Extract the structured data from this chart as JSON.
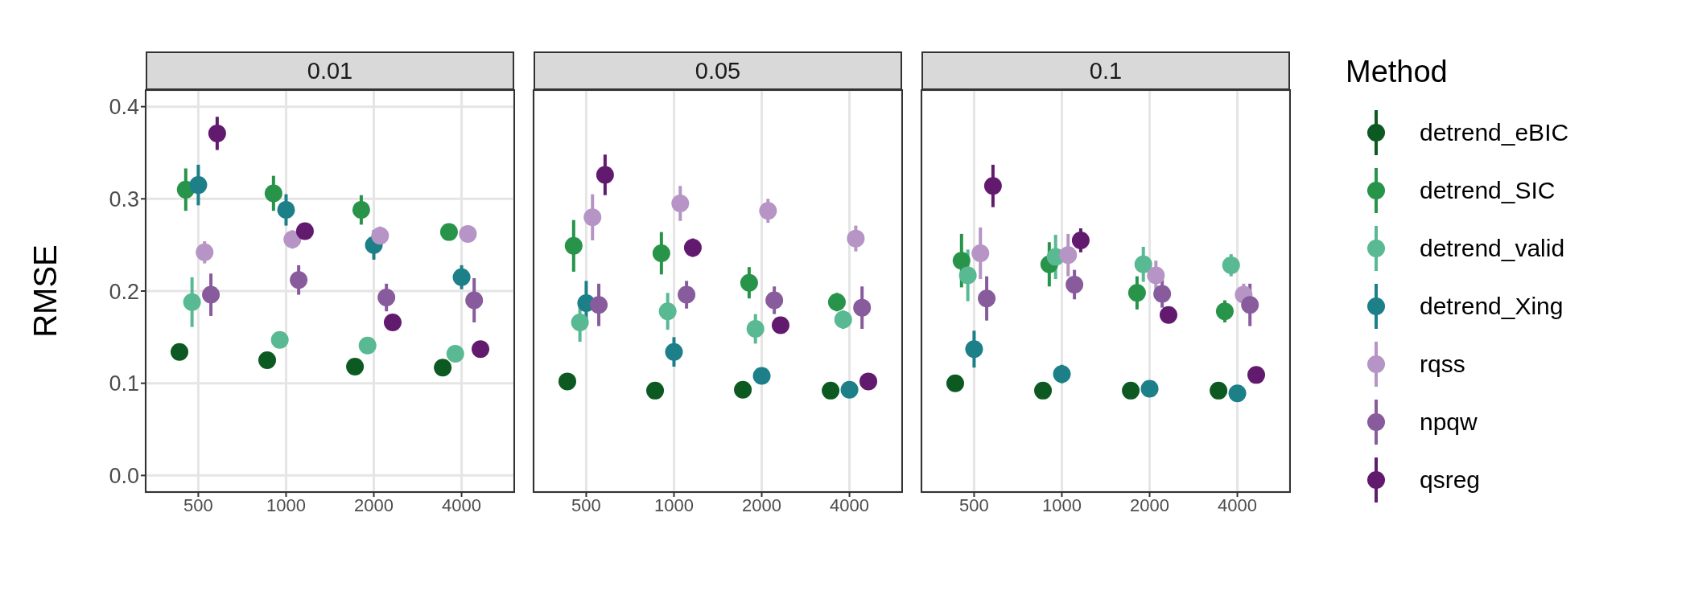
{
  "chart_data": [
    {
      "type": "scatter",
      "title": "0.01",
      "ylabel": "RMSE",
      "categories": [
        "500",
        "1000",
        "2000",
        "4000"
      ],
      "ylim": [
        -0.018,
        0.418
      ],
      "yticks": [
        {
          "value": 0,
          "label": "0.0"
        },
        0.1,
        0.2,
        0.3,
        0.4
      ],
      "grid": true,
      "marker": "circle",
      "series": [
        {
          "color": "#0c5a22",
          "values": [
            0.134,
            0.125,
            0.118,
            0.117
          ]
        },
        {
          "color": "#27944a",
          "values": [
            0.31,
            0.306,
            0.288,
            0.264
          ],
          "errors": [
            0.023,
            0.019,
            0.016,
            null
          ]
        },
        {
          "color": "#58b993",
          "values": [
            0.188,
            0.147,
            0.141,
            0.132
          ],
          "errors": [
            0.027,
            0.006,
            null,
            null
          ]
        },
        {
          "color": "#1d7f88",
          "values": [
            0.315,
            0.288,
            0.25,
            0.215
          ],
          "errors": [
            0.022,
            0.017,
            0.016,
            0.013
          ]
        },
        {
          "color": "#b694c5",
          "values": [
            0.242,
            0.256,
            0.26,
            0.262
          ],
          "errors": [
            0.012,
            0.01,
            0.01,
            null
          ]
        },
        {
          "color": "#885c9c",
          "values": [
            0.196,
            0.212,
            0.193,
            0.19
          ],
          "errors": [
            0.023,
            0.016,
            0.015,
            0.024
          ]
        },
        {
          "color": "#621a6e",
          "values": [
            0.371,
            0.265,
            0.166,
            0.137
          ],
          "errors": [
            0.018,
            null,
            null,
            null
          ]
        }
      ]
    },
    {
      "type": "scatter",
      "title": "0.05",
      "categories": [
        "500",
        "1000",
        "2000",
        "4000"
      ],
      "ylim": [
        -0.018,
        0.418
      ],
      "yticks": [
        0,
        0.1,
        0.2,
        0.3,
        0.4
      ],
      "tick_labels": "x",
      "grid": true,
      "marker": "circle",
      "series": [
        {
          "color": "#0c5a22",
          "values": [
            0.102,
            0.092,
            0.093,
            0.092
          ]
        },
        {
          "color": "#27944a",
          "values": [
            0.249,
            0.241,
            0.209,
            0.188
          ],
          "errors": [
            0.028,
            0.023,
            0.017,
            0.01
          ]
        },
        {
          "color": "#58b993",
          "values": [
            0.166,
            0.178,
            0.159,
            0.169
          ],
          "errors": [
            0.021,
            0.02,
            0.016,
            0.01
          ]
        },
        {
          "color": "#1d7f88",
          "values": [
            0.187,
            0.134,
            0.108,
            0.093
          ],
          "errors": [
            0.024,
            0.016,
            null,
            null
          ]
        },
        {
          "color": "#b694c5",
          "values": [
            0.28,
            0.295,
            0.287,
            0.257
          ],
          "errors": [
            0.025,
            0.019,
            0.013,
            0.014
          ]
        },
        {
          "color": "#885c9c",
          "values": [
            0.185,
            0.196,
            0.19,
            0.182
          ],
          "errors": [
            0.023,
            0.015,
            0.015,
            0.023
          ]
        },
        {
          "color": "#621a6e",
          "values": [
            0.326,
            0.247,
            0.163,
            0.102
          ],
          "errors": [
            0.022,
            0.01,
            null,
            null
          ]
        }
      ]
    },
    {
      "type": "scatter",
      "title": "0.1",
      "categories": [
        "500",
        "1000",
        "2000",
        "4000"
      ],
      "ylim": [
        -0.018,
        0.418
      ],
      "yticks": [
        0,
        0.1,
        0.2,
        0.3,
        0.4
      ],
      "tick_labels": "x",
      "grid": true,
      "marker": "circle",
      "legend": "right",
      "legend_title": "Method",
      "series": [
        {
          "name": "detrend_eBIC",
          "color": "#0c5a22",
          "values": [
            0.1,
            0.092,
            0.092,
            0.092
          ]
        },
        {
          "name": "detrend_SIC",
          "color": "#27944a",
          "values": [
            0.233,
            0.229,
            0.198,
            0.178
          ],
          "errors": [
            0.029,
            0.024,
            0.018,
            0.012
          ]
        },
        {
          "name": "detrend_valid",
          "color": "#58b993",
          "values": [
            0.217,
            0.237,
            0.229,
            0.228
          ],
          "errors": [
            0.028,
            0.024,
            0.019,
            0.012
          ]
        },
        {
          "name": "detrend_Xing",
          "color": "#1d7f88",
          "values": [
            0.137,
            0.11,
            0.094,
            0.089
          ],
          "errors": [
            0.02,
            0.01,
            null,
            null
          ]
        },
        {
          "name": "rqss",
          "color": "#b694c5",
          "values": [
            0.241,
            0.239,
            0.217,
            0.196
          ],
          "errors": [
            0.028,
            0.023,
            0.016,
            0.012
          ]
        },
        {
          "name": "npqw",
          "color": "#885c9c",
          "values": [
            0.192,
            0.207,
            0.197,
            0.185
          ],
          "errors": [
            0.024,
            0.016,
            0.015,
            0.023
          ]
        },
        {
          "name": "qsreg",
          "color": "#621a6e",
          "values": [
            0.314,
            0.255,
            0.174,
            0.109
          ],
          "errors": [
            0.023,
            0.013,
            null,
            null
          ]
        }
      ]
    }
  ]
}
